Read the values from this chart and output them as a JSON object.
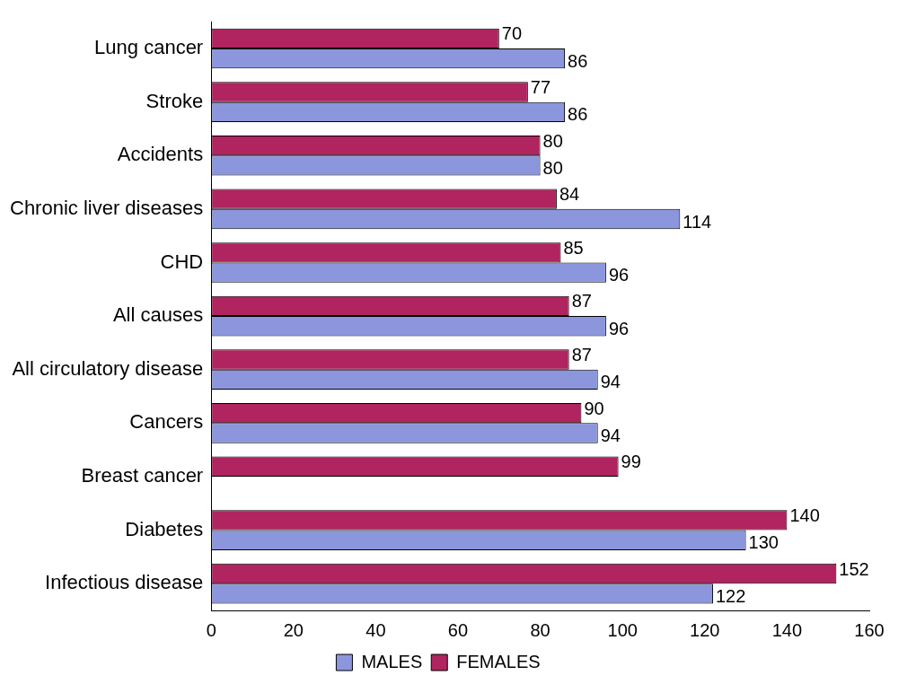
{
  "chart_data": {
    "type": "bar",
    "orientation": "horizontal",
    "categories": [
      "Lung cancer",
      "Stroke",
      "Accidents",
      "Chronic liver diseases",
      "CHD",
      "All causes",
      "All circulatory disease",
      "Cancers",
      "Breast cancer",
      "Diabetes",
      "Infectious disease"
    ],
    "series": [
      {
        "name": "FEMALES",
        "color": "#b0245f",
        "values": [
          70,
          77,
          80,
          84,
          85,
          87,
          87,
          90,
          99,
          140,
          152
        ]
      },
      {
        "name": "MALES",
        "color": "#8c96dc",
        "values": [
          86,
          86,
          80,
          114,
          96,
          96,
          94,
          94,
          null,
          130,
          122
        ]
      }
    ],
    "xlim": [
      0,
      160
    ],
    "xticks": [
      0,
      20,
      40,
      60,
      80,
      100,
      120,
      140,
      160
    ],
    "data_labels": true,
    "grid": false,
    "legend": "bottom"
  }
}
